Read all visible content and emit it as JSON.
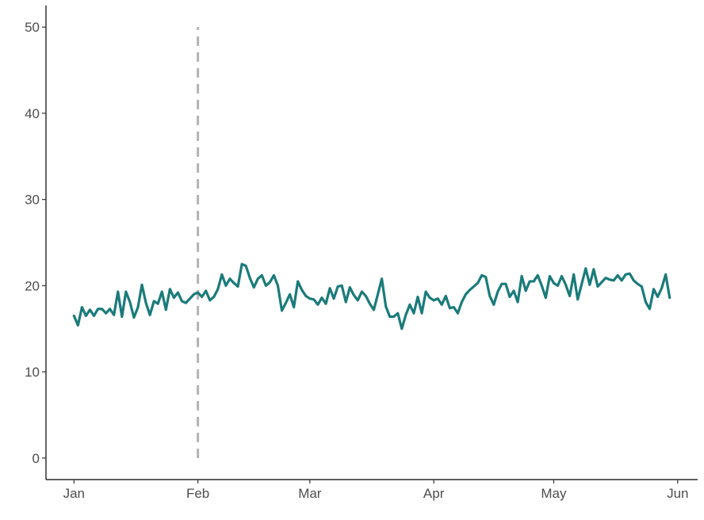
{
  "chart_data": {
    "type": "line",
    "title": "",
    "xlabel": "",
    "ylabel": "",
    "x_start": "2021-01-01",
    "x_end": "2021-05-30",
    "xlim": [
      "2020-12-25",
      "2021-06-06"
    ],
    "ylim": [
      -2.5,
      52.5
    ],
    "x_ticks": [
      {
        "label": "Jan",
        "date": "2021-01-01"
      },
      {
        "label": "Feb",
        "date": "2021-02-01"
      },
      {
        "label": "Mar",
        "date": "2021-03-01"
      },
      {
        "label": "Apr",
        "date": "2021-04-01"
      },
      {
        "label": "May",
        "date": "2021-05-01"
      },
      {
        "label": "Jun",
        "date": "2021-06-01"
      }
    ],
    "y_ticks": [
      {
        "label": "0",
        "value": 0
      },
      {
        "label": "10",
        "value": 10
      },
      {
        "label": "20",
        "value": 20
      },
      {
        "label": "30",
        "value": 30
      },
      {
        "label": "40",
        "value": 40
      },
      {
        "label": "50",
        "value": 50
      }
    ],
    "grid": false,
    "series": [
      {
        "color": "#1b7b7b",
        "values": [
          16.5,
          15.4,
          17.5,
          16.5,
          17.2,
          16.5,
          17.3,
          17.3,
          16.8,
          17.3,
          16.6,
          19.3,
          16.4,
          19.3,
          18.1,
          16.3,
          17.5,
          20.1,
          18.0,
          16.6,
          18.2,
          17.9,
          19.3,
          17.2,
          19.6,
          18.6,
          19.2,
          18.2,
          18.0,
          18.5,
          19.0,
          19.2,
          18.7,
          19.4,
          18.3,
          18.7,
          19.6,
          21.3,
          20.0,
          20.8,
          20.3,
          19.9,
          22.5,
          22.3,
          20.9,
          19.8,
          20.8,
          21.2,
          20.0,
          20.4,
          21.2,
          20.0,
          17.1,
          18.0,
          19.0,
          17.5,
          20.5,
          19.5,
          18.8,
          18.5,
          18.4,
          17.8,
          18.6,
          17.9,
          19.7,
          18.5,
          19.9,
          20.0,
          18.1,
          19.8,
          18.9,
          18.3,
          19.3,
          18.8,
          17.9,
          17.2,
          19.0,
          20.8,
          17.6,
          16.4,
          16.4,
          16.8,
          15.0,
          16.6,
          17.8,
          16.8,
          18.7,
          16.8,
          19.3,
          18.6,
          18.3,
          18.5,
          17.8,
          18.8,
          17.4,
          17.5,
          16.8,
          18.1,
          19.0,
          19.5,
          19.9,
          20.3,
          21.2,
          21.0,
          18.8,
          17.8,
          19.3,
          20.2,
          20.2,
          18.7,
          19.4,
          18.1,
          21.1,
          19.4,
          20.5,
          20.5,
          21.2,
          20.0,
          18.6,
          21.1,
          20.3,
          20.0,
          21.1,
          20.1,
          18.8,
          21.3,
          18.4,
          20.2,
          22.0,
          20.1,
          21.9,
          19.9,
          20.4,
          20.9,
          20.7,
          20.6,
          21.2,
          20.6,
          21.3,
          21.4,
          20.6,
          20.2,
          19.9,
          18.1,
          17.3,
          19.6,
          18.7,
          19.7,
          21.3,
          18.6
        ]
      }
    ],
    "annotations": [
      {
        "type": "vline",
        "x": "2021-02-01",
        "y_from": 0,
        "y_to": 50,
        "style": "dashed",
        "color": "#b3b3b3"
      }
    ]
  }
}
